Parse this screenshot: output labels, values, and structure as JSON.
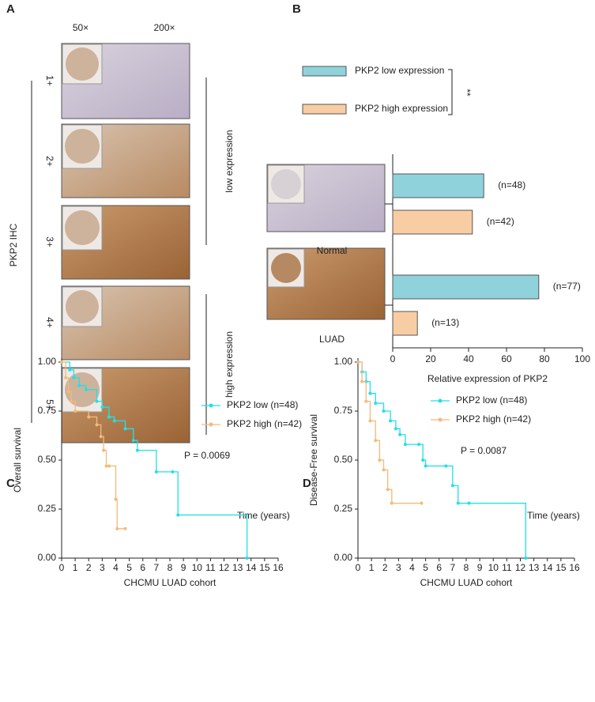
{
  "panel_a": {
    "label": "A",
    "columns": [
      "50×",
      "200×"
    ],
    "rows": [
      "1+",
      "2+",
      "3+",
      "4+",
      "5+"
    ],
    "y_label": "PKP2  IHC",
    "groups": [
      "low  expression",
      "high  expression"
    ]
  },
  "chart_data": [
    {
      "type": "bar",
      "panel": "B",
      "orientation": "horizontal",
      "categories": [
        "Normal",
        "LUAD"
      ],
      "series": [
        {
          "name": "PKP2 low expression",
          "color": "#8fd2dc",
          "values": [
            48,
            77
          ],
          "value_labels": [
            "(n=48)",
            "(n=77)"
          ]
        },
        {
          "name": "PKP2 high expression",
          "color": "#f8cda3",
          "values": [
            42,
            13
          ],
          "value_labels": [
            "(n=42)",
            "(n=13)"
          ]
        }
      ],
      "annotation": "**",
      "x_label": "Relative expression  of PKP2",
      "xlim": [
        0,
        100
      ],
      "xticks": [
        0,
        20,
        40,
        60,
        80,
        100
      ]
    },
    {
      "type": "line",
      "panel": "C",
      "step": true,
      "series": [
        {
          "name": "PKP2 low (n=48)",
          "color": "#22e0e8",
          "x": [
            0,
            0.6,
            0.9,
            1.3,
            1.8,
            2.6,
            3.0,
            3.5,
            3.9,
            4.7,
            5.3,
            5.6,
            7.0,
            8.2,
            8.6,
            13.7
          ],
          "values": [
            1.0,
            0.96,
            0.92,
            0.88,
            0.86,
            0.8,
            0.77,
            0.72,
            0.7,
            0.66,
            0.6,
            0.55,
            0.44,
            0.44,
            0.22,
            0.0
          ]
        },
        {
          "name": "PKP2 high (n=42)",
          "color": "#f5b97a",
          "x": [
            0,
            0.3,
            0.5,
            0.7,
            1.0,
            2.0,
            2.6,
            2.9,
            3.1,
            3.3,
            3.5,
            4.0,
            4.1,
            4.7
          ],
          "values": [
            1.0,
            0.92,
            0.85,
            0.8,
            0.75,
            0.72,
            0.68,
            0.62,
            0.55,
            0.47,
            0.47,
            0.3,
            0.15,
            0.15
          ]
        }
      ],
      "p_value": "P = 0.0069",
      "time_label": "Time (years)",
      "x_label": "CHCMU LUAD cohort",
      "y_label": "Overall survival",
      "xlim": [
        0,
        16
      ],
      "xticks": [
        0,
        1,
        2,
        3,
        4,
        5,
        6,
        7,
        8,
        9,
        10,
        11,
        12,
        13,
        14,
        15,
        16
      ],
      "ylim": [
        0,
        1
      ],
      "yticks": [
        {
          "value": 0,
          "label": "0.00"
        },
        {
          "value": 0.25,
          "label": "0.25"
        },
        {
          "value": 0.5,
          "label": "0.50"
        },
        {
          "value": 0.75,
          "label": "0.75"
        },
        {
          "value": 1,
          "label": "1.00"
        }
      ]
    },
    {
      "type": "line",
      "panel": "D",
      "step": true,
      "series": [
        {
          "name": "PKP2 low (n=48)",
          "color": "#22e0e8",
          "x": [
            0,
            0.3,
            0.6,
            0.9,
            1.3,
            1.9,
            2.4,
            2.8,
            3.1,
            3.5,
            4.5,
            4.8,
            5.0,
            6.5,
            7.0,
            7.4,
            8.2,
            12.4
          ],
          "values": [
            1.0,
            0.95,
            0.9,
            0.84,
            0.79,
            0.75,
            0.7,
            0.66,
            0.63,
            0.58,
            0.58,
            0.5,
            0.47,
            0.47,
            0.37,
            0.28,
            0.28,
            0.0
          ]
        },
        {
          "name": "PKP2 high (n=42)",
          "color": "#f5b97a",
          "x": [
            0,
            0.3,
            0.6,
            0.9,
            1.3,
            1.6,
            1.9,
            2.2,
            2.5,
            4.7
          ],
          "values": [
            1.0,
            0.9,
            0.8,
            0.7,
            0.6,
            0.5,
            0.45,
            0.35,
            0.28,
            0.28
          ]
        }
      ],
      "p_value": "P = 0.0087",
      "time_label": "Time (years)",
      "x_label": "CHCMU LUAD cohort",
      "y_label": "Disease-Free survival",
      "xlim": [
        0,
        16
      ],
      "xticks": [
        0,
        1,
        2,
        3,
        4,
        5,
        6,
        7,
        8,
        9,
        10,
        11,
        12,
        13,
        14,
        15,
        16
      ],
      "ylim": [
        0,
        1
      ],
      "yticks": [
        {
          "value": 0,
          "label": "0.00"
        },
        {
          "value": 0.25,
          "label": "0.25"
        },
        {
          "value": 0.5,
          "label": "0.50"
        },
        {
          "value": 0.75,
          "label": "0.75"
        },
        {
          "value": 1,
          "label": "1.00"
        }
      ]
    }
  ]
}
